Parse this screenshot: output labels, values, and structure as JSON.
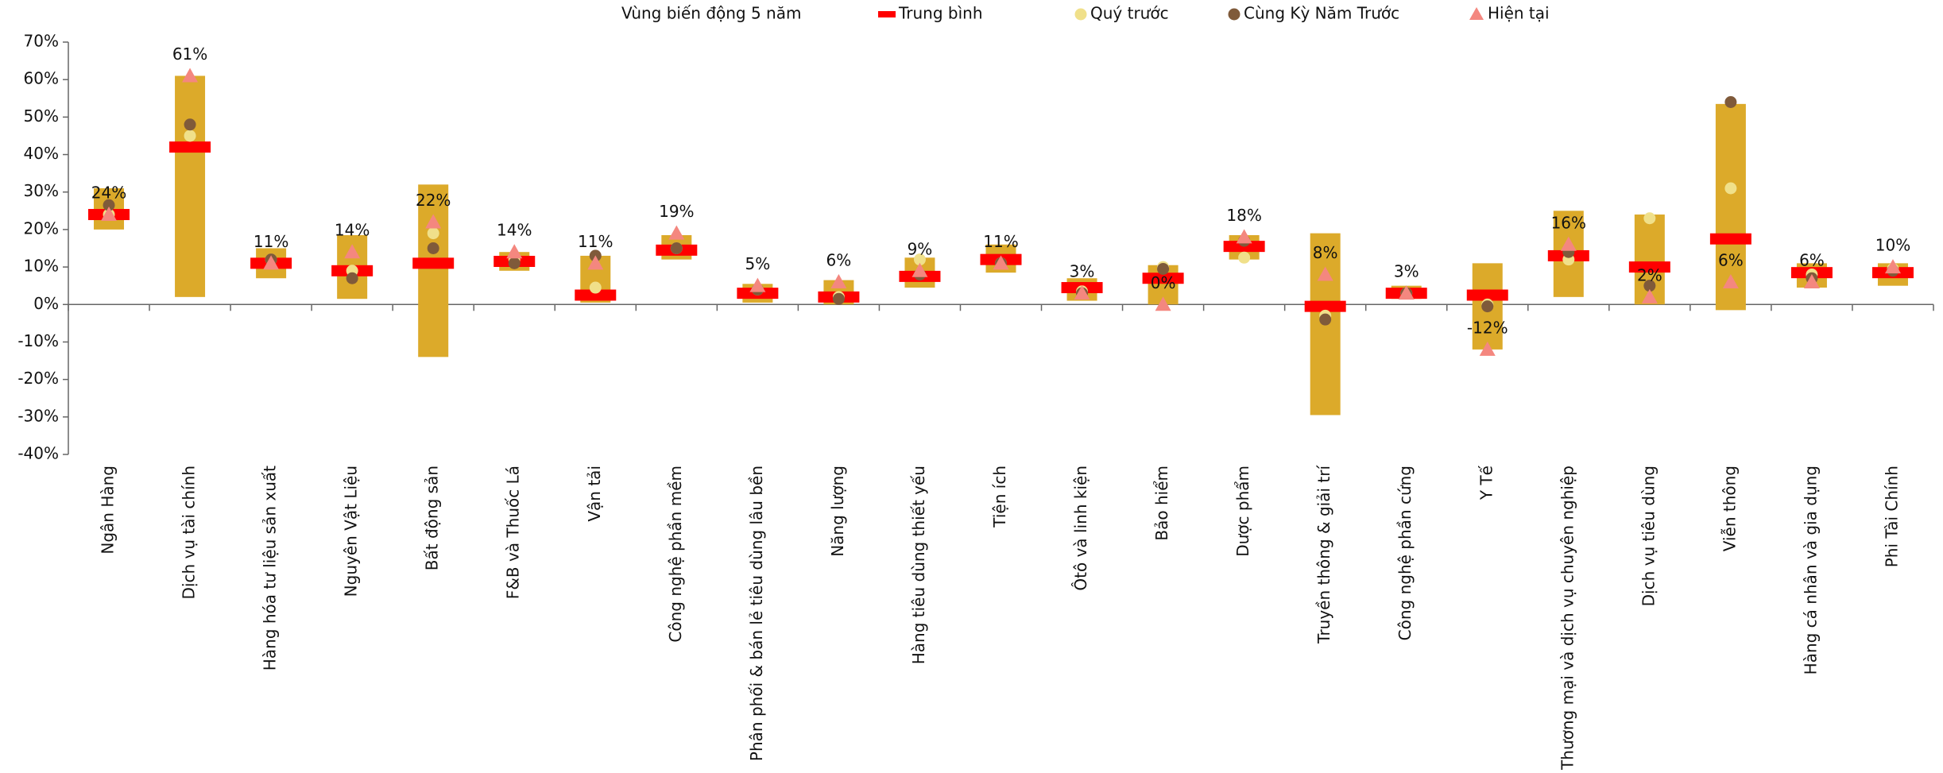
{
  "chart_data": {
    "type": "range-dot",
    "categories": [
      "Ngân Hàng",
      "Dịch vụ tài chính",
      "Hàng hóa tư liệu sản xuất",
      "Nguyên Vật Liệu",
      "Bất động sản",
      "F&B và Thuốc Lá",
      "Vận tải",
      "Công nghệ phần mềm",
      "Phân phối & bán lẻ tiêu dùng lâu bền",
      "Năng lượng",
      "Hàng tiêu dùng thiết yếu",
      "Tiện ích",
      "Ôtô và linh kiện",
      "Bảo hiểm",
      "Dược phẩm",
      "Truyền thông & giải trí",
      "Công nghệ phần cứng",
      "Y Tế",
      "Thương mại và dịch vụ chuyên nghiệp",
      "Dịch vụ tiêu dùng",
      "Viễn thông",
      "Hàng cá nhân và gia dụng",
      "Phi Tài Chính"
    ],
    "series": [
      {
        "name": "Vùng biến động 5 năm",
        "color": "#dcaa2a",
        "low": [
          20,
          2,
          7,
          1.5,
          -14,
          9,
          0.5,
          12,
          0.5,
          0,
          4.5,
          8.5,
          1,
          0,
          12,
          -29.5,
          1.5,
          -12,
          2,
          0,
          -1.5,
          4.5,
          5
        ],
        "high": [
          31,
          61,
          15,
          18.5,
          32,
          14,
          13,
          18.5,
          5.5,
          6.5,
          12.5,
          16,
          7,
          10.5,
          18.5,
          19,
          5,
          11,
          25,
          24,
          53.5,
          11,
          11
        ]
      },
      {
        "name": "Trung bình",
        "color": "#ff0000",
        "values": [
          24,
          42,
          11,
          9,
          11,
          11.5,
          2.5,
          14.5,
          3,
          2,
          7.5,
          12,
          4.5,
          7,
          15.5,
          -0.5,
          3,
          2.5,
          13,
          10,
          17.5,
          8.5,
          8.5
        ]
      },
      {
        "name": "Quý trước",
        "color": "#f0e08a",
        "values": [
          24,
          45,
          12,
          9,
          19,
          12,
          4.5,
          15,
          4,
          2,
          12,
          11,
          3.5,
          10,
          12.5,
          -3,
          3,
          0,
          12,
          23,
          31,
          8,
          9.5
        ]
      },
      {
        "name": "Cùng Kỳ Năm Trước",
        "color": "#7f5a3a",
        "values": [
          26.5,
          48,
          12,
          7,
          15,
          11,
          13,
          15,
          4,
          1.5,
          8,
          11,
          3,
          9.5,
          17,
          -4,
          3,
          -0.5,
          14,
          5,
          54,
          7,
          9
        ]
      },
      {
        "name": "Hiện tại",
        "color": "#f4877f",
        "values": [
          24,
          61,
          11,
          14,
          22,
          14,
          11,
          19,
          5,
          6,
          9,
          11,
          3,
          0,
          18,
          8,
          3,
          -12,
          16,
          2,
          6,
          6,
          10
        ],
        "value_labels": [
          "24%",
          "61%",
          "11%",
          "14%",
          "22%",
          "14%",
          "11%",
          "19%",
          "5%",
          "6%",
          "9%",
          "11%",
          "3%",
          "0%",
          "18%",
          "8%",
          "3%",
          "-12%",
          "16%",
          "2%",
          "6%",
          "6%",
          "10%"
        ]
      }
    ],
    "ylim": [
      -40,
      70
    ],
    "yticks": [
      {
        "value": -40,
        "label": "-40%"
      },
      {
        "value": -30,
        "label": "-30%"
      },
      {
        "value": -20,
        "label": "-20%"
      },
      {
        "value": -10,
        "label": "-10%"
      },
      {
        "value": 0,
        "label": "0%"
      },
      {
        "value": 10,
        "label": "10%"
      },
      {
        "value": 20,
        "label": "20%"
      },
      {
        "value": 30,
        "label": "30%"
      },
      {
        "value": 40,
        "label": "40%"
      },
      {
        "value": 50,
        "label": "50%"
      },
      {
        "value": 60,
        "label": "60%"
      },
      {
        "value": 70,
        "label": "70%"
      }
    ],
    "legend": "top"
  }
}
